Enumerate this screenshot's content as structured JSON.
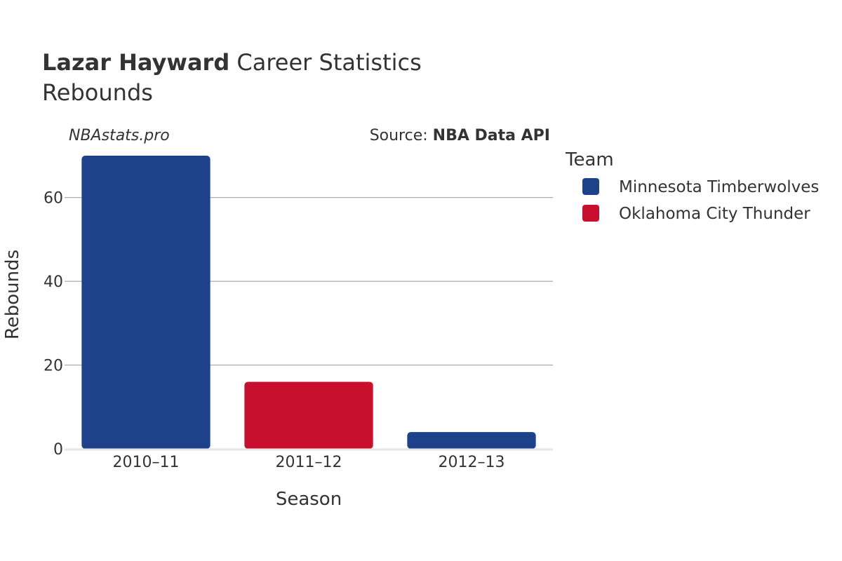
{
  "header": {
    "title_bold": "Lazar Hayward",
    "title_rest": " Career Statistics",
    "subtitle": "Rebounds"
  },
  "credits": {
    "site": "NBAstats.pro",
    "source_prefix": "Source: ",
    "source_name": "NBA Data API"
  },
  "colors": {
    "minnesota": "#1d428a",
    "oklahoma": "#c8102e",
    "grid": "#999999",
    "axis_line": "#e6e6e6",
    "text": "#333333"
  },
  "chart_data": {
    "type": "bar",
    "xlabel": "Season",
    "ylabel": "Rebounds",
    "ylim": [
      0,
      70
    ],
    "yticks": [
      0,
      20,
      40,
      60
    ],
    "categories": [
      "2010–11",
      "2011–12",
      "2012–13"
    ],
    "bars": [
      {
        "category": "2010–11",
        "team": "Minnesota Timberwolves",
        "value": 70
      },
      {
        "category": "2011–12",
        "team": "Oklahoma City Thunder",
        "value": 16
      },
      {
        "category": "2012–13",
        "team": "Minnesota Timberwolves",
        "value": 4
      }
    ],
    "grid": true,
    "legend_position": "right",
    "legend": {
      "title": "Team",
      "entries": [
        {
          "name": "Minnesota Timberwolves",
          "color": "#1d428a"
        },
        {
          "name": "Oklahoma City Thunder",
          "color": "#c8102e"
        }
      ]
    }
  }
}
